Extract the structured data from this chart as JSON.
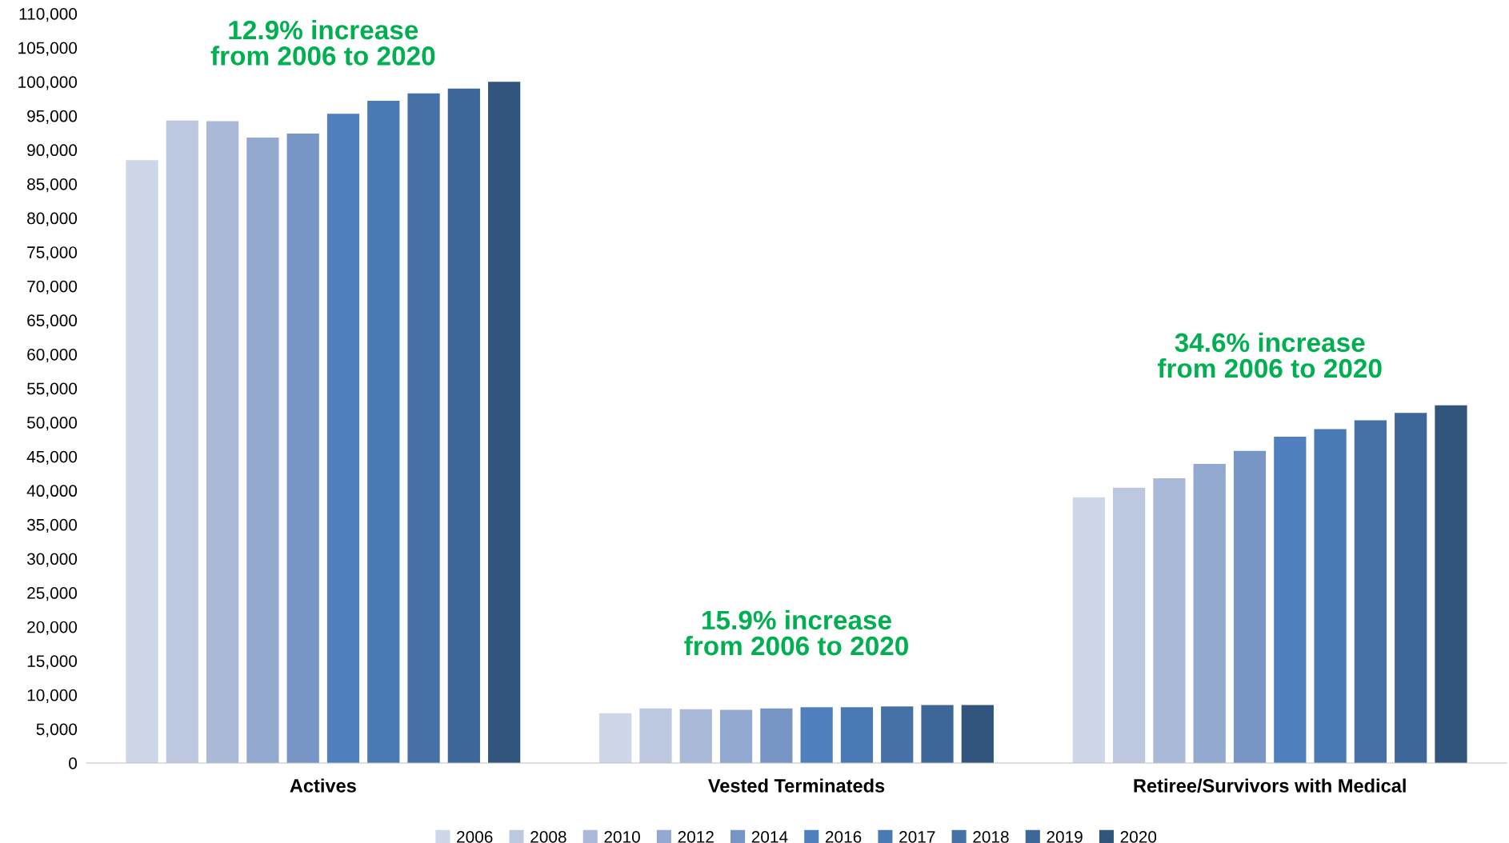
{
  "chart_data": {
    "type": "bar",
    "categories": [
      "Actives",
      "Vested Terminateds",
      "Retiree/Survivors with Medical"
    ],
    "series": [
      {
        "name": "2006",
        "color": "#cdd7e8",
        "values": [
          88500,
          7300,
          39000
        ]
      },
      {
        "name": "2008",
        "color": "#bcc8e0",
        "values": [
          94300,
          8000,
          40400
        ]
      },
      {
        "name": "2010",
        "color": "#abb9d8",
        "values": [
          94200,
          7900,
          41800
        ]
      },
      {
        "name": "2012",
        "color": "#94a9d0",
        "values": [
          91800,
          7800,
          43900
        ]
      },
      {
        "name": "2014",
        "color": "#7796c5",
        "values": [
          92400,
          8000,
          45800
        ]
      },
      {
        "name": "2016",
        "color": "#4f80bd",
        "values": [
          95300,
          8200,
          47900
        ]
      },
      {
        "name": "2017",
        "color": "#4a7ab3",
        "values": [
          97200,
          8200,
          49000
        ]
      },
      {
        "name": "2018",
        "color": "#4571a6",
        "values": [
          98300,
          8300,
          50300
        ]
      },
      {
        "name": "2019",
        "color": "#3e6799",
        "values": [
          99000,
          8500,
          51400
        ]
      },
      {
        "name": "2020",
        "color": "#31557d",
        "values": [
          100000,
          8500,
          52500
        ]
      }
    ],
    "ylim": [
      0,
      110000
    ],
    "yticks": [
      0,
      {
        "value": 5000,
        "label": "5,000"
      },
      {
        "value": 10000,
        "label": "10,000"
      },
      {
        "value": 15000,
        "label": "15,000"
      },
      {
        "value": 20000,
        "label": "20,000"
      },
      {
        "value": 25000,
        "label": "25,000"
      },
      {
        "value": 30000,
        "label": "30,000"
      },
      {
        "value": 35000,
        "label": "35,000"
      },
      {
        "value": 40000,
        "label": "40,000"
      },
      {
        "value": 45000,
        "label": "45,000"
      },
      {
        "value": 50000,
        "label": "50,000"
      },
      {
        "value": 55000,
        "label": "55,000"
      },
      {
        "value": 60000,
        "label": "60,000"
      },
      {
        "value": 65000,
        "label": "65,000"
      },
      {
        "value": 70000,
        "label": "70,000"
      },
      {
        "value": 75000,
        "label": "75,000"
      },
      {
        "value": 80000,
        "label": "80,000"
      },
      {
        "value": 85000,
        "label": "85,000"
      },
      {
        "value": 90000,
        "label": "90,000"
      },
      {
        "value": 95000,
        "label": "95,000"
      },
      {
        "value": 100000,
        "label": "100,000"
      },
      {
        "value": 105000,
        "label": "105,000"
      },
      {
        "value": 110000,
        "label": "110,000"
      }
    ],
    "annotations": [
      "12.9% increase\nfrom 2006 to 2020",
      "15.9% increase\nfrom 2006 to 2020",
      "34.6% increase\nfrom 2006 to 2020"
    ],
    "grid": false,
    "legend": "bottom"
  }
}
